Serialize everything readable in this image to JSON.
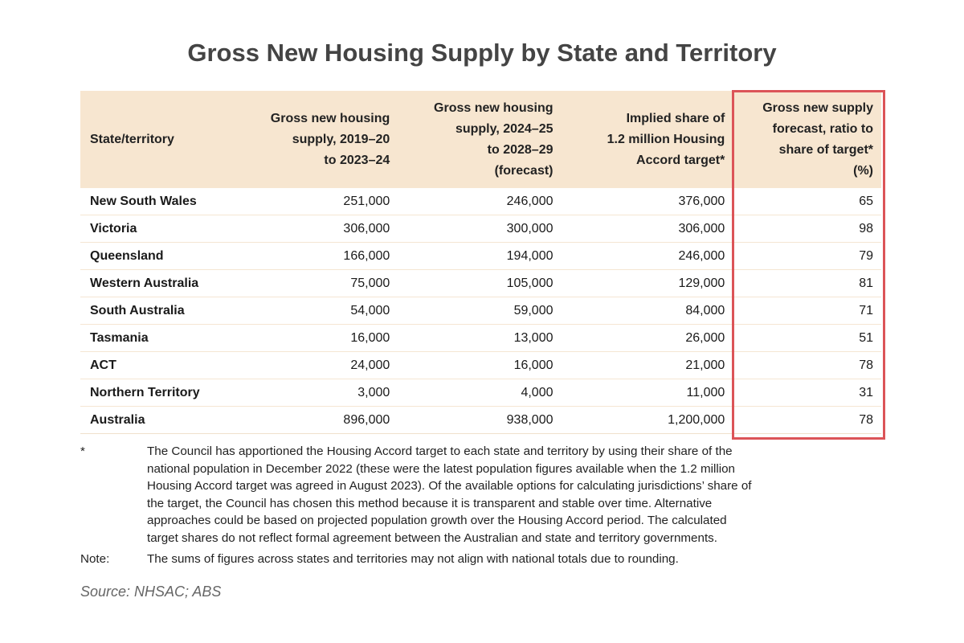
{
  "title": "Gross New Housing Supply by State and Territory",
  "table": {
    "headers": [
      "State/territory",
      "Gross new housing supply, 2019–20 to 2023–24",
      "Gross new housing supply, 2024–25 to 2028–29 (forecast)",
      "Implied share of 1.2 million Housing Accord target*",
      "Gross new supply forecast, ratio to share of target* (%)"
    ],
    "header_lines": [
      [
        "State/territory"
      ],
      [
        "Gross new housing",
        "supply, 2019–20",
        "to 2023–24"
      ],
      [
        "Gross new housing",
        "supply, 2024–25",
        "to 2028–29",
        "(forecast)"
      ],
      [
        "Implied share of",
        "1.2 million Housing",
        "Accord target*"
      ],
      [
        "Gross new supply",
        "forecast, ratio to",
        "share of target*",
        "(%)"
      ]
    ],
    "rows": [
      [
        "New South Wales",
        "251,000",
        "246,000",
        "376,000",
        "65"
      ],
      [
        "Victoria",
        "306,000",
        "300,000",
        "306,000",
        "98"
      ],
      [
        "Queensland",
        "166,000",
        "194,000",
        "246,000",
        "79"
      ],
      [
        "Western Australia",
        "75,000",
        "105,000",
        "129,000",
        "81"
      ],
      [
        "South Australia",
        "54,000",
        "59,000",
        "84,000",
        "71"
      ],
      [
        "Tasmania",
        "16,000",
        "13,000",
        "26,000",
        "51"
      ],
      [
        "ACT",
        "24,000",
        "16,000",
        "21,000",
        "78"
      ],
      [
        "Northern Territory",
        "3,000",
        "4,000",
        "11,000",
        "31"
      ],
      [
        "Australia",
        "896,000",
        "938,000",
        "1,200,000",
        "78"
      ]
    ],
    "highlight_color": "#dc5458",
    "header_bg": "#f7e6d0"
  },
  "footnote": {
    "mark": "*",
    "lines": [
      "The Council has apportioned the Housing Accord target to each state and territory by using their share of the",
      "national population in December 2022 (these were the latest population figures available when the 1.2 million",
      "Housing Accord target was agreed in August 2023). Of the available options for calculating jurisdictions’ share of",
      "the target, the Council has chosen this method because it is transparent and stable over time. Alternative",
      "approaches could be based on projected population growth over the Housing Accord period. The calculated",
      "target shares do not reflect formal agreement between the Australian and state and territory governments."
    ]
  },
  "note": {
    "label": "Note:",
    "text": "The sums of figures across states and territories may not align with national totals due to rounding."
  },
  "source": "Source: NHSAC; ABS"
}
